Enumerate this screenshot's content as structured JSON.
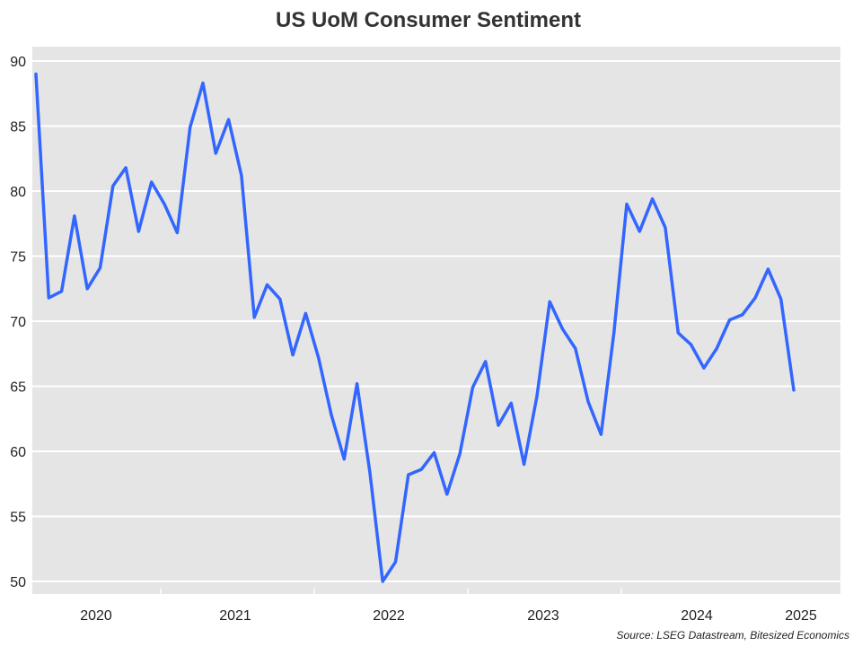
{
  "chart_data": {
    "type": "line",
    "title": "US UoM Consumer Sentiment",
    "xlabel": "",
    "ylabel": "",
    "ylim": [
      50,
      90
    ],
    "yticks": [
      50,
      55,
      60,
      65,
      70,
      75,
      80,
      85,
      90
    ],
    "xticks": [
      "2020",
      "2021",
      "2022",
      "2023",
      "2024",
      "2025"
    ],
    "grid": true,
    "series": [
      {
        "name": "US UoM Consumer Sentiment",
        "color": "#3366ff",
        "values": [
          89.0,
          71.8,
          72.3,
          78.1,
          72.5,
          74.1,
          80.4,
          81.8,
          76.9,
          80.7,
          79.0,
          76.8,
          84.9,
          88.3,
          82.9,
          85.5,
          81.2,
          70.3,
          72.8,
          71.7,
          67.4,
          70.6,
          67.2,
          62.8,
          59.4,
          65.2,
          58.4,
          50.0,
          51.5,
          58.2,
          58.6,
          59.9,
          56.7,
          59.8,
          64.9,
          66.9,
          62.0,
          63.7,
          59.0,
          64.2,
          71.5,
          69.4,
          67.9,
          63.8,
          61.3,
          69.1,
          79.0,
          76.9,
          79.4,
          77.2,
          69.1,
          68.2,
          66.4,
          67.9,
          70.1,
          70.5,
          71.8,
          74.0,
          71.7,
          64.7
        ]
      }
    ]
  },
  "source_note": "Source: LSEG Datastream, Bitesized Economics"
}
